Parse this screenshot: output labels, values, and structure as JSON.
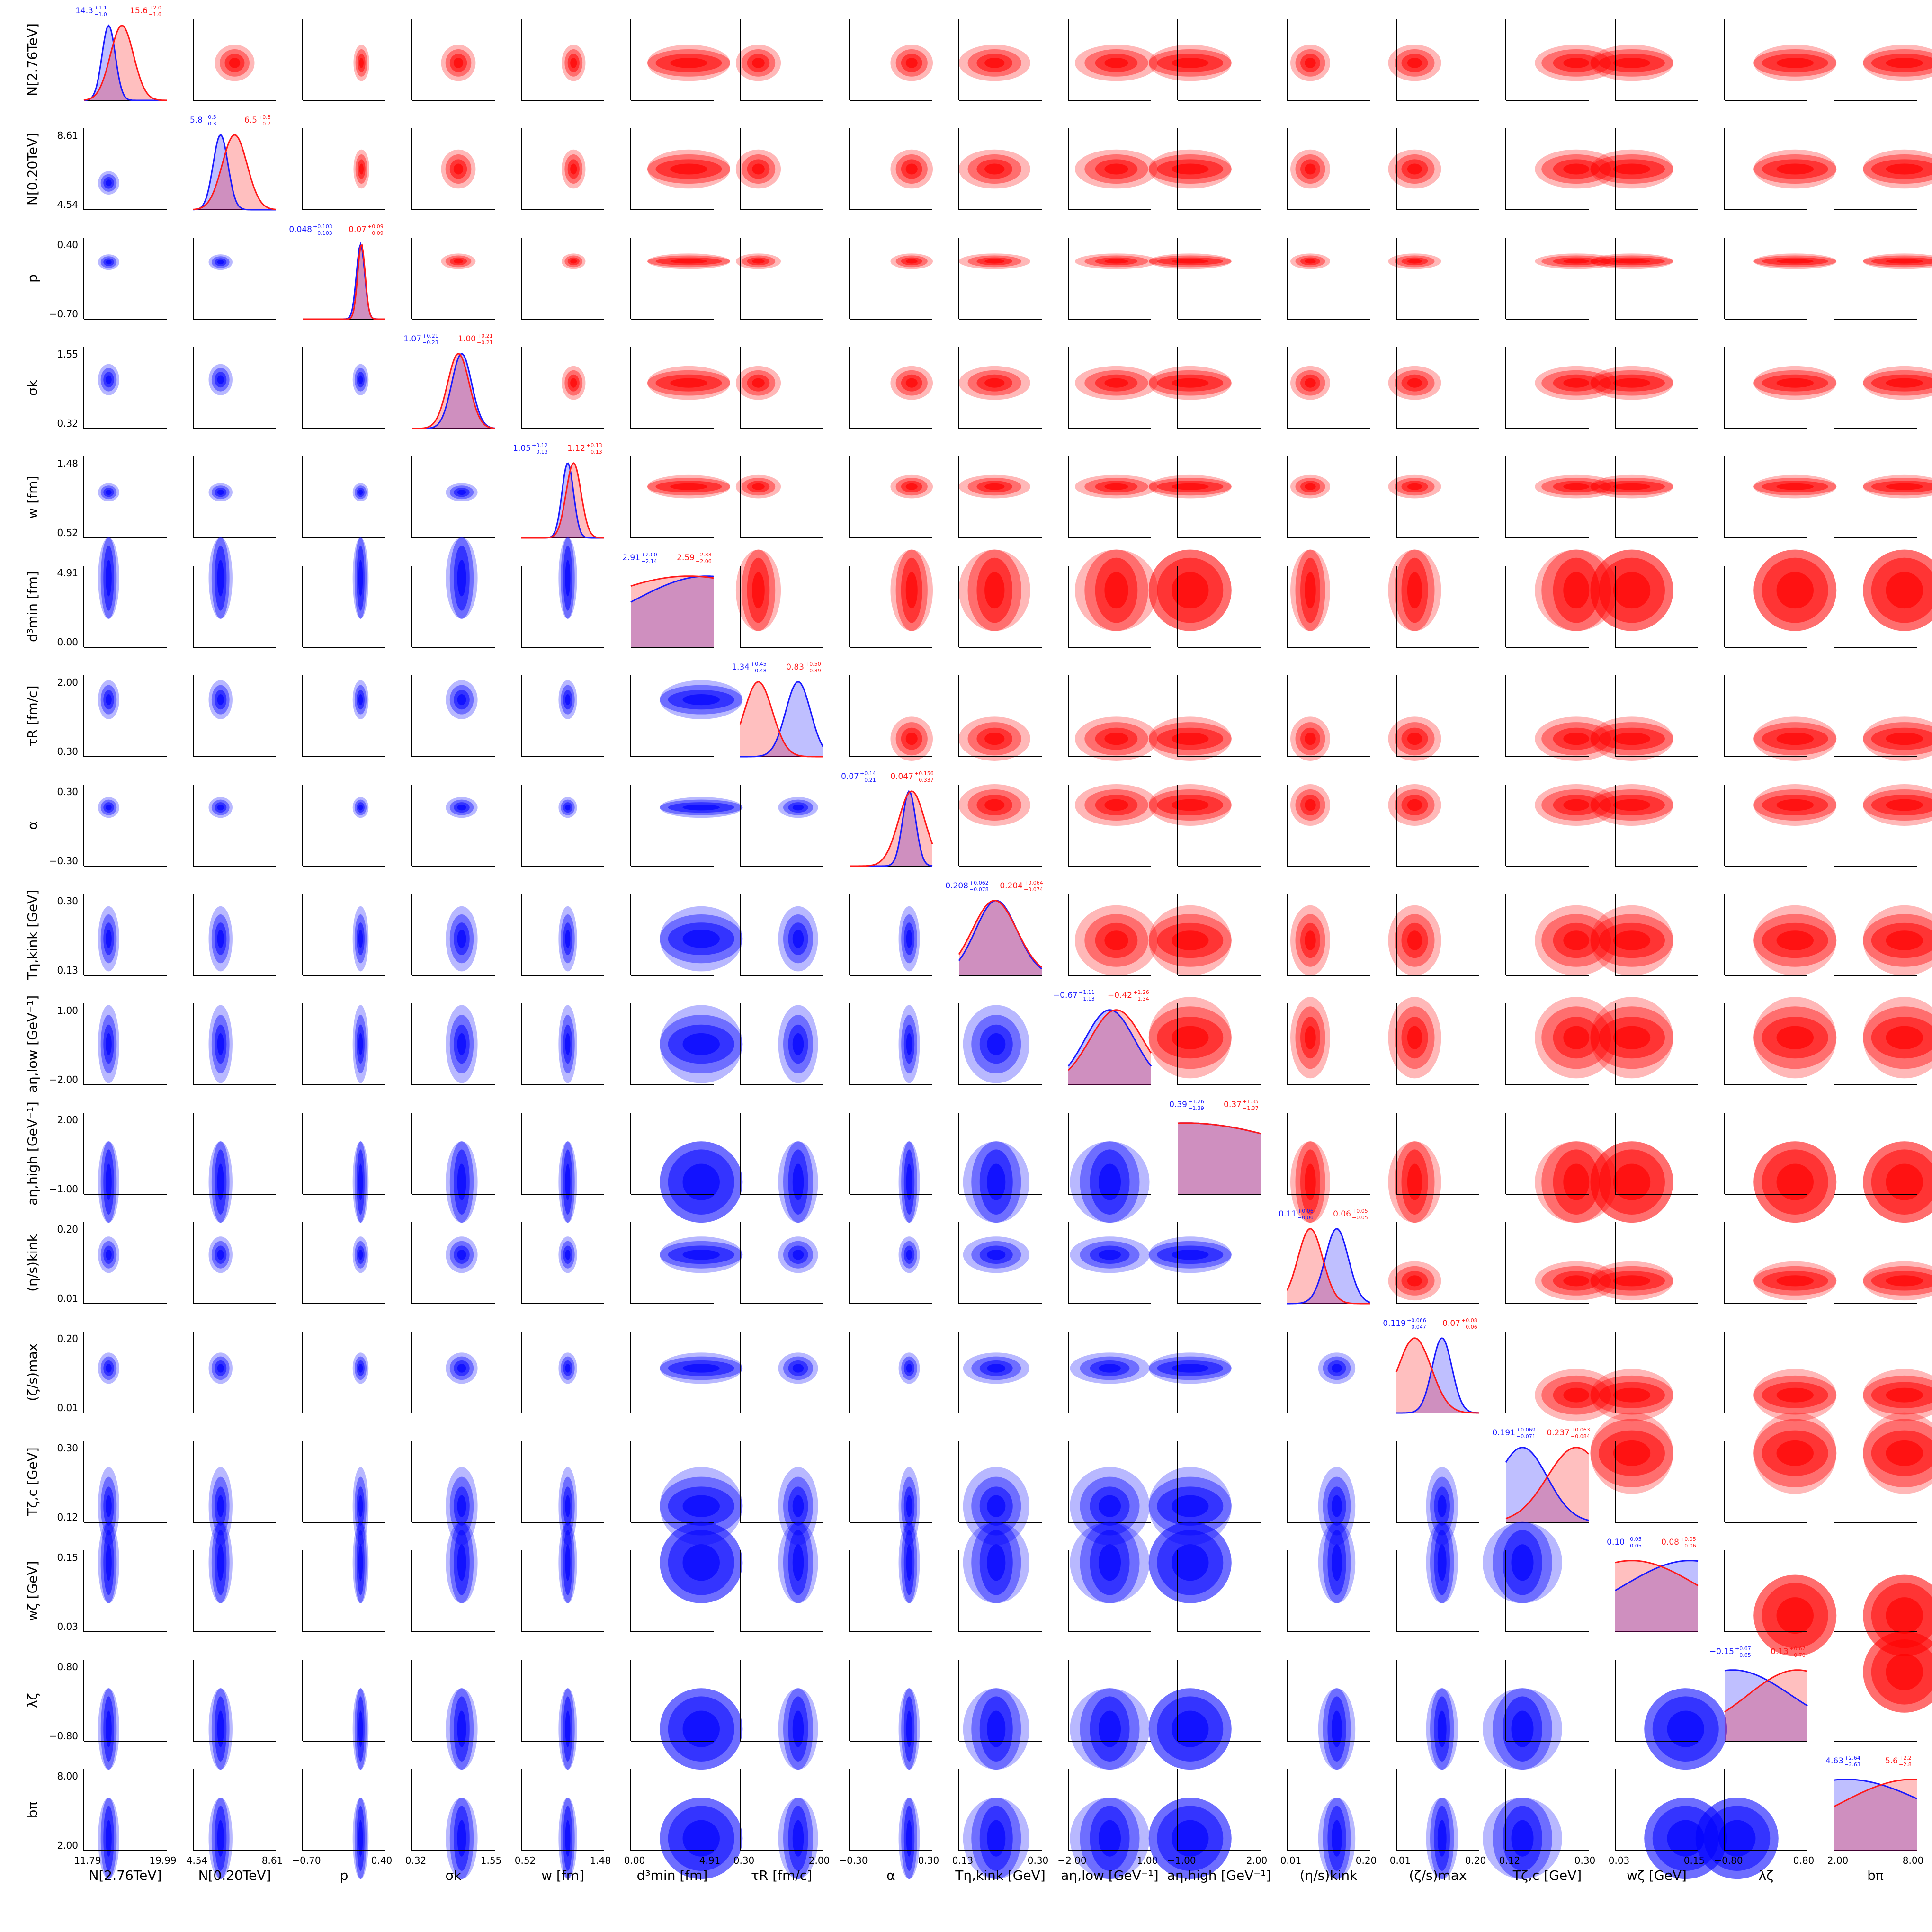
{
  "colors": {
    "posterior_a": "#1a1aff",
    "posterior_b": "#ff1a1a",
    "axis": "#000000",
    "fill_a": "#0000ff",
    "fill_b": "#ff0000",
    "overlap": "#c080c0"
  },
  "chart_data": {
    "type": "corner",
    "grid": false,
    "legend": "none",
    "note_series": "blue = lower-left triangle + blue curve/labels; red = upper-right triangle + red curve/labels",
    "params": [
      {
        "label": "N[2.76TeV]",
        "tick_lo": "11.79",
        "tick_hi": "19.99",
        "range": [
          11.79,
          19.99
        ],
        "stat_a": {
          "median": "14.3",
          "plus": "+1.1",
          "minus": "−1.0"
        },
        "stat_b": {
          "median": "15.6",
          "plus": "+2.0",
          "minus": "−1.6"
        },
        "peak_a": 0.3,
        "width_a": 0.08,
        "peak_b": 0.46,
        "width_b": 0.14
      },
      {
        "label": "N[0.20TeV]",
        "tick_lo": "4.54",
        "tick_hi": "8.61",
        "range": [
          4.54,
          8.61
        ],
        "stat_a": {
          "median": "5.8",
          "plus": "+0.5",
          "minus": "−0.3"
        },
        "stat_b": {
          "median": "6.5",
          "plus": "+0.8",
          "minus": "−0.7"
        },
        "peak_a": 0.33,
        "width_a": 0.09,
        "peak_b": 0.5,
        "width_b": 0.15
      },
      {
        "label": "p",
        "tick_lo": "−0.70",
        "tick_hi": "0.40",
        "range": [
          -0.7,
          0.4
        ],
        "stat_a": {
          "median": "0.048",
          "plus": "+0.103",
          "minus": "−0.103"
        },
        "stat_b": {
          "median": "0.07",
          "plus": "+0.09",
          "minus": "−0.09"
        },
        "peak_a": 0.7,
        "width_a": 0.05,
        "peak_b": 0.71,
        "width_b": 0.045
      },
      {
        "label": "σk",
        "tick_lo": "0.32",
        "tick_hi": "1.55",
        "range": [
          0.32,
          1.55
        ],
        "stat_a": {
          "median": "1.07",
          "plus": "+0.21",
          "minus": "−0.23"
        },
        "stat_b": {
          "median": "1.00",
          "plus": "+0.21",
          "minus": "−0.21"
        },
        "peak_a": 0.6,
        "width_a": 0.12,
        "peak_b": 0.56,
        "width_b": 0.13
      },
      {
        "label": "w [fm]",
        "tick_lo": "0.52",
        "tick_hi": "1.48",
        "range": [
          0.52,
          1.48
        ],
        "stat_a": {
          "median": "1.05",
          "plus": "+0.12",
          "minus": "−0.13"
        },
        "stat_b": {
          "median": "1.12",
          "plus": "+0.13",
          "minus": "−0.13"
        },
        "peak_a": 0.56,
        "width_a": 0.07,
        "peak_b": 0.63,
        "width_b": 0.09
      },
      {
        "label": "d³min [fm]",
        "tick_lo": "0.00",
        "tick_hi": "4.91",
        "range": [
          0.0,
          4.91
        ],
        "stat_a": {
          "median": "2.91",
          "plus": "+2.00",
          "minus": "−2.14"
        },
        "stat_b": {
          "median": "2.59",
          "plus": "+2.33",
          "minus": "−2.06"
        },
        "peak_a": 0.92,
        "width_a": 0.9,
        "peak_b": 0.7,
        "width_b": 1.2
      },
      {
        "label": "τR [fm/c]",
        "tick_lo": "0.30",
        "tick_hi": "2.00",
        "range": [
          0.3,
          2.0
        ],
        "stat_a": {
          "median": "1.34",
          "plus": "+0.45",
          "minus": "−0.48"
        },
        "stat_b": {
          "median": "0.83",
          "plus": "+0.50",
          "minus": "−0.39"
        },
        "peak_a": 0.7,
        "width_a": 0.15,
        "peak_b": 0.22,
        "width_b": 0.17
      },
      {
        "label": "α",
        "tick_lo": "−0.30",
        "tick_hi": "0.30",
        "range": [
          -0.3,
          0.3
        ],
        "stat_a": {
          "median": "0.07",
          "plus": "+0.14",
          "minus": "−0.21"
        },
        "stat_b": {
          "median": "0.047",
          "plus": "+0.156",
          "minus": "−0.337"
        },
        "peak_a": 0.72,
        "width_a": 0.08,
        "peak_b": 0.75,
        "width_b": 0.16
      },
      {
        "label": "Tη,kink [GeV]",
        "tick_lo": "0.13",
        "tick_hi": "0.30",
        "range": [
          0.13,
          0.3
        ],
        "stat_a": {
          "median": "0.208",
          "plus": "+0.062",
          "minus": "−0.078"
        },
        "stat_b": {
          "median": "0.204",
          "plus": "+0.064",
          "minus": "−0.074"
        },
        "peak_a": 0.45,
        "width_a": 0.25,
        "peak_b": 0.43,
        "width_b": 0.27
      },
      {
        "label": "aη,low [GeV⁻¹]",
        "tick_lo": "−2.00",
        "tick_hi": "1.00",
        "range": [
          -2.0,
          1.0
        ],
        "stat_a": {
          "median": "−0.67",
          "plus": "+1.11",
          "minus": "−1.13"
        },
        "stat_b": {
          "median": "−0.42",
          "plus": "+1.26",
          "minus": "−1.34"
        },
        "peak_a": 0.5,
        "width_a": 0.3,
        "peak_b": 0.58,
        "width_b": 0.32
      },
      {
        "label": "aη,high [GeV⁻¹]",
        "tick_lo": "−1.00",
        "tick_hi": "2.00",
        "range": [
          -1.0,
          2.0
        ],
        "stat_a": {
          "median": "0.39",
          "plus": "+1.26",
          "minus": "−1.39"
        },
        "stat_b": {
          "median": "0.37",
          "plus": "+1.35",
          "minus": "−1.37"
        },
        "peak_a": 0.1,
        "width_a": 1.5,
        "peak_b": 0.1,
        "width_b": 1.5
      },
      {
        "label": "(η/s)kink",
        "tick_lo": "0.01",
        "tick_hi": "0.20",
        "range": [
          0.01,
          0.2
        ],
        "stat_a": {
          "median": "0.11",
          "plus": "+0.06",
          "minus": "−0.06"
        },
        "stat_b": {
          "median": "0.06",
          "plus": "+0.05",
          "minus": "−0.05"
        },
        "peak_a": 0.6,
        "width_a": 0.14,
        "peak_b": 0.28,
        "width_b": 0.15
      },
      {
        "label": "(ζ/s)max",
        "tick_lo": "0.01",
        "tick_hi": "0.20",
        "range": [
          0.01,
          0.2
        ],
        "stat_a": {
          "median": "0.119",
          "plus": "+0.066",
          "minus": "−0.047"
        },
        "stat_b": {
          "median": "0.07",
          "plus": "+0.08",
          "minus": "−0.06"
        },
        "peak_a": 0.55,
        "width_a": 0.12,
        "peak_b": 0.22,
        "width_b": 0.2
      },
      {
        "label": "Tζ,c [GeV]",
        "tick_lo": "0.12",
        "tick_hi": "0.30",
        "range": [
          0.12,
          0.3
        ],
        "stat_a": {
          "median": "0.191",
          "plus": "+0.069",
          "minus": "−0.071"
        },
        "stat_b": {
          "median": "0.237",
          "plus": "+0.063",
          "minus": "−0.084"
        },
        "peak_a": 0.2,
        "width_a": 0.3,
        "peak_b": 0.85,
        "width_b": 0.35
      },
      {
        "label": "wζ [GeV]",
        "tick_lo": "0.03",
        "tick_hi": "0.15",
        "range": [
          0.03,
          0.15
        ],
        "stat_a": {
          "median": "0.10",
          "plus": "+0.05",
          "minus": "−0.05"
        },
        "stat_b": {
          "median": "0.08",
          "plus": "+0.05",
          "minus": "−0.06"
        },
        "peak_a": 0.9,
        "width_a": 0.8,
        "peak_b": 0.2,
        "width_b": 0.8
      },
      {
        "label": "λζ",
        "tick_lo": "−0.80",
        "tick_hi": "0.80",
        "range": [
          -0.8,
          0.8
        ],
        "stat_a": {
          "median": "−0.15",
          "plus": "+0.67",
          "minus": "−0.65"
        },
        "stat_b": {
          "median": "0.13",
          "plus": "+0.67",
          "minus": "−0.70"
        },
        "peak_a": 0.1,
        "width_a": 0.7,
        "peak_b": 0.88,
        "width_b": 0.6
      },
      {
        "label": "bπ",
        "tick_lo": "2.00",
        "tick_hi": "8.00",
        "range": [
          2.0,
          8.0
        ],
        "stat_a": {
          "median": "4.63",
          "plus": "+2.64",
          "minus": "−2.63"
        },
        "stat_b": {
          "median": "5.6",
          "plus": "+2.2",
          "minus": "−2.8"
        },
        "peak_a": 0.15,
        "width_a": 1.0,
        "peak_b": 0.95,
        "width_b": 0.9
      }
    ]
  }
}
